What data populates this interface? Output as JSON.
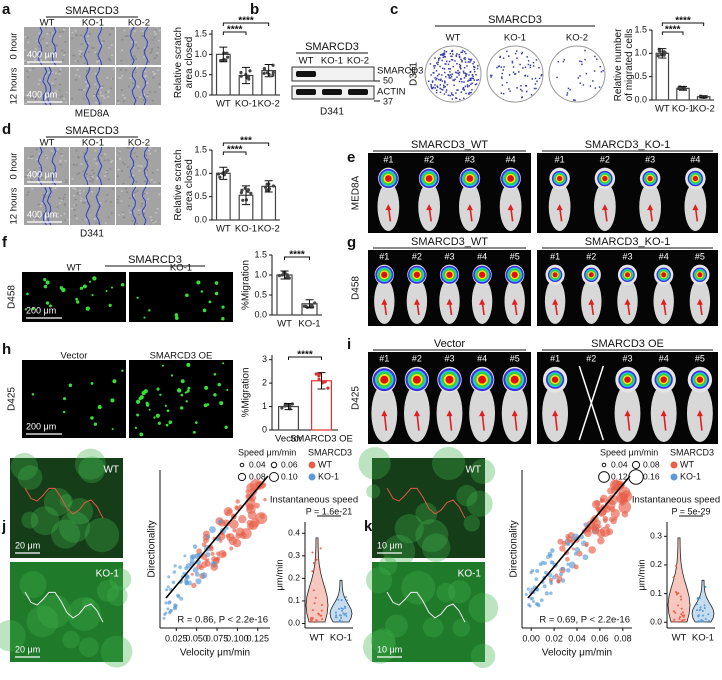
{
  "figure": {
    "a": {
      "letter": "a",
      "group": "SMARCD3",
      "columns": [
        "WT",
        "KO-1",
        "KO-2"
      ],
      "rows": [
        "0 hour",
        "12 hours"
      ],
      "scale_bar": "400 μm",
      "cell_line": "MED8A",
      "chart": {
        "type": "bar",
        "ylabel": [
          "Relative scratch",
          "area closed"
        ],
        "categories": [
          "WT",
          "KO-1",
          "KO-2"
        ],
        "values": [
          1.0,
          0.48,
          0.6
        ],
        "errors": [
          0.18,
          0.2,
          0.15
        ],
        "colors": [
          "#444444",
          "#444444",
          "#444444"
        ],
        "ylim": [
          0,
          1.6
        ],
        "yticks": [
          {
            "value": 0,
            "label": "0.0"
          },
          {
            "value": 0.5,
            "label": "0.5"
          },
          {
            "value": 1,
            "label": "1.0"
          },
          {
            "value": 1.5,
            "label": "1.5"
          }
        ],
        "significance": [
          "****",
          "****"
        ]
      }
    },
    "b": {
      "letter": "b",
      "group": "SMARCD3",
      "lanes": [
        "WT",
        "KO-1",
        "KO-2"
      ],
      "bands": [
        "SMARCD3",
        "ACTIN"
      ],
      "markers": [
        50,
        37
      ],
      "cell_line": "D341"
    },
    "c": {
      "letter": "c",
      "group": "SMARCD3",
      "wells": [
        "WT",
        "KO-1",
        "KO-2"
      ],
      "cell_line": "D341",
      "chart": {
        "type": "bar",
        "ylabel": [
          "Relative number",
          "of migrated cells"
        ],
        "categories": [
          "WT",
          "KO-1",
          "KO-2"
        ],
        "values": [
          1.0,
          0.25,
          0.07
        ],
        "errors": [
          0.1,
          0.04,
          0.02
        ],
        "colors": [
          "#444444",
          "#444444",
          "#444444"
        ],
        "ylim": [
          0,
          1.5
        ],
        "yticks": [
          {
            "value": 0,
            "label": "0.0"
          },
          {
            "value": 0.5,
            "label": "0.5"
          },
          {
            "value": 1,
            "label": "1.0"
          },
          {
            "value": 1.5,
            "label": "1.5"
          }
        ],
        "significance": [
          "****",
          "****"
        ]
      }
    },
    "d": {
      "letter": "d",
      "group": "SMARCD3",
      "columns": [
        "WT",
        "KO-1",
        "KO-2"
      ],
      "rows": [
        "0 hour",
        "12 hours"
      ],
      "scale_bar": "400 μm",
      "cell_line": "D341",
      "chart": {
        "type": "bar",
        "ylabel": [
          "Relative scratch",
          "area closed"
        ],
        "categories": [
          "WT",
          "KO-1",
          "KO-2"
        ],
        "values": [
          1.0,
          0.53,
          0.72
        ],
        "errors": [
          0.13,
          0.2,
          0.12
        ],
        "colors": [
          "#444444",
          "#444444",
          "#444444"
        ],
        "ylim": [
          0,
          1.5
        ],
        "yticks": [
          {
            "value": 0,
            "label": "0.0"
          },
          {
            "value": 0.5,
            "label": "0.5"
          },
          {
            "value": 1,
            "label": "1.0"
          },
          {
            "value": 1.5,
            "label": "1.5"
          }
        ],
        "significance": [
          "****",
          "***"
        ]
      }
    },
    "e": {
      "letter": "e",
      "groups": [
        {
          "name": "SMARCD3_WT",
          "mice": [
            "#1",
            "#2",
            "#3",
            "#4"
          ]
        },
        {
          "name": "SMARCD3_KO-1",
          "mice": [
            "#1",
            "#2",
            "#3",
            "#4"
          ]
        }
      ],
      "cell_line": "MED8A"
    },
    "f": {
      "letter": "f",
      "group": "SMARCD3",
      "columns": [
        "WT",
        "KO-1"
      ],
      "scale_bar": "200 μm",
      "cell_line": "D458",
      "chart": {
        "type": "bar",
        "ylabel": [
          "%Migration"
        ],
        "categories": [
          "WT",
          "KO-1"
        ],
        "values": [
          1.0,
          0.28
        ],
        "errors": [
          0.1,
          0.1
        ],
        "colors": [
          "#444444",
          "#444444"
        ],
        "ylim": [
          0,
          1.5
        ],
        "yticks": [
          {
            "value": 0,
            "label": "0.0"
          },
          {
            "value": 0.5,
            "label": "0.5"
          },
          {
            "value": 1,
            "label": "1.0"
          },
          {
            "value": 1.5,
            "label": "1.5"
          }
        ],
        "significance": [
          "****"
        ]
      }
    },
    "g": {
      "letter": "g",
      "groups": [
        {
          "name": "SMARCD3_WT",
          "mice": [
            "#1",
            "#2",
            "#3",
            "#4",
            "#5"
          ]
        },
        {
          "name": "SMARCD3_KO-1",
          "mice": [
            "#1",
            "#2",
            "#3",
            "#4",
            "#5"
          ]
        }
      ],
      "cell_line": "D458"
    },
    "h": {
      "letter": "h",
      "columns": [
        "Vector",
        "SMARCD3 OE"
      ],
      "scale_bar": "200 μm",
      "cell_line": "D425",
      "chart": {
        "type": "bar",
        "ylabel": [
          "%Migration"
        ],
        "categories": [
          "Vector",
          "SMARCD3 OE"
        ],
        "values": [
          1.0,
          2.1
        ],
        "errors": [
          0.13,
          0.35
        ],
        "colors": [
          "#444444",
          "#e03030"
        ],
        "ylim": [
          0,
          3.2
        ],
        "yticks": [
          0,
          1,
          2,
          3
        ],
        "significance": [
          "****"
        ]
      }
    },
    "i": {
      "letter": "i",
      "groups": [
        {
          "name": "Vector",
          "mice": [
            "#1",
            "#2",
            "#3",
            "#4",
            "#5"
          ]
        },
        {
          "name": "SMARCD3 OE",
          "mice": [
            "#1",
            "#2",
            "#3",
            "#4",
            "#5"
          ]
        }
      ],
      "cell_line": "D425"
    },
    "j": {
      "letter": "j",
      "images": [
        {
          "label": "WT",
          "scale_bar": "20 μm"
        },
        {
          "label": "KO-1",
          "scale_bar": "20 μm"
        }
      ],
      "scatter": {
        "type": "scatter",
        "xlabel": "Velocity μm/min",
        "ylabel": "Directionality",
        "xlim": [
          0.005,
          0.14
        ],
        "xticks": [
          {
            "value": 0.025,
            "label": "0.025"
          },
          {
            "value": 0.05,
            "label": "0.050"
          },
          0.075,
          {
            "value": 0.1,
            "label": "0.100"
          },
          0.125
        ],
        "annotation": "R = 0.86, P < 2.2e-16",
        "size_title": "Speed μm/min",
        "sizes": [
          0.04,
          0.06,
          0.08,
          {
            "value": 0.1,
            "label": "0.10"
          }
        ],
        "color_title": "SMARCD3",
        "series": [
          {
            "name": "WT",
            "color": "#e8604a"
          },
          {
            "name": "KO-1",
            "color": "#5b9bd5"
          }
        ]
      },
      "violin": {
        "type": "violin",
        "title": "Instantaneous speed",
        "pvalue": "P = 1.6e-21",
        "ylabel": "μm/min",
        "categories": [
          "WT",
          "KO-1"
        ],
        "ylim": [
          -0.02,
          0.45
        ],
        "yticks": [
          {
            "value": 0,
            "label": "0.0"
          },
          0.1,
          0.2,
          0.3,
          0.4
        ]
      }
    },
    "k": {
      "letter": "k",
      "images": [
        {
          "label": "WT",
          "scale_bar": "10 μm"
        },
        {
          "label": "KO-1",
          "scale_bar": "10 μm"
        }
      ],
      "scatter": {
        "type": "scatter",
        "xlabel": "Velocity μm/min",
        "ylabel": "Directionality",
        "xlim": [
          -0.008,
          0.088
        ],
        "xticks": [
          {
            "value": 0,
            "label": "0.00"
          },
          0.02,
          0.04,
          0.06,
          0.08
        ],
        "annotation": "R = 0.69, P < 2.2e-16",
        "size_title": "Speed μm/min",
        "sizes": [
          0.04,
          0.08,
          0.12,
          0.16
        ],
        "color_title": "SMARCD3",
        "series": [
          {
            "name": "WT",
            "color": "#e8604a"
          },
          {
            "name": "KO-1",
            "color": "#5b9bd5"
          }
        ]
      },
      "violin": {
        "type": "violin",
        "title": "Instantaneous speed",
        "pvalue": "P = 5e-29",
        "ylabel": "μm/min",
        "categories": [
          "WT",
          "KO-1"
        ],
        "ylim": [
          -0.02,
          0.35
        ],
        "yticks": [
          {
            "value": 0,
            "label": "0.0"
          },
          0.1,
          0.2,
          0.3
        ]
      }
    }
  }
}
